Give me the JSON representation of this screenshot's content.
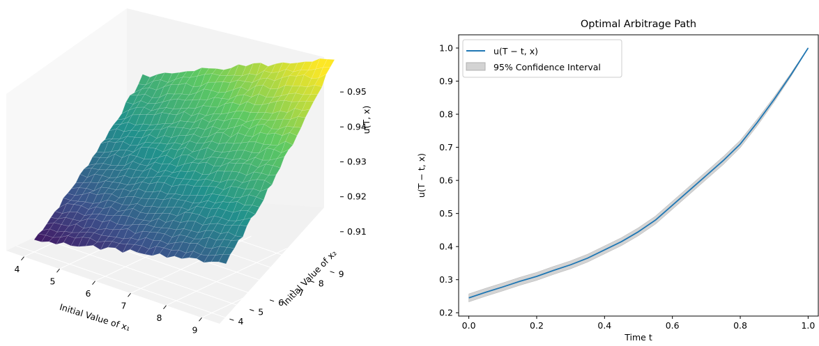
{
  "chart_data": [
    {
      "type": "surface3d",
      "title": "",
      "xlabel": "Initial Value of x₁",
      "ylabel": "Initial Value of x₂",
      "zlabel": "u(T, x)",
      "xticks": [
        "4",
        "5",
        "6",
        "7",
        "8",
        "9"
      ],
      "yticks": [
        "4",
        "5",
        "6",
        "7",
        "8",
        "9"
      ],
      "zticks": [
        "0.91",
        "0.92",
        "0.93",
        "0.94",
        "0.95"
      ],
      "xlim": [
        3.5,
        9.5
      ],
      "ylim": [
        3.5,
        9.5
      ],
      "zlim": [
        0.9,
        0.957
      ],
      "colormap": "viridis",
      "grid": true,
      "surface_corners": {
        "x_low_y_low": 0.9,
        "x_high_y_low": 0.915,
        "x_low_y_high": 0.933,
        "x_high_y_high": 0.957
      }
    },
    {
      "type": "line",
      "title": "Optimal Arbitrage Path",
      "xlabel": "Time t",
      "ylabel": "u(T − t, x)",
      "xlim": [
        -0.03,
        1.03
      ],
      "ylim": [
        0.19,
        1.04
      ],
      "xticks": [
        "0.0",
        "0.2",
        "0.4",
        "0.6",
        "0.8",
        "1.0"
      ],
      "yticks": [
        "0.2",
        "0.3",
        "0.4",
        "0.5",
        "0.6",
        "0.7",
        "0.8",
        "0.9",
        "1.0"
      ],
      "grid": false,
      "legend_position": "top-left",
      "series": [
        {
          "name": "u(T − t, x)",
          "color": "#1f77b4",
          "x": [
            0.0,
            0.05,
            0.1,
            0.15,
            0.2,
            0.25,
            0.3,
            0.35,
            0.4,
            0.45,
            0.5,
            0.55,
            0.6,
            0.65,
            0.7,
            0.75,
            0.8,
            0.85,
            0.9,
            0.95,
            1.0
          ],
          "y": [
            0.245,
            0.262,
            0.278,
            0.295,
            0.31,
            0.328,
            0.345,
            0.365,
            0.39,
            0.415,
            0.445,
            0.48,
            0.525,
            0.57,
            0.615,
            0.66,
            0.71,
            0.775,
            0.845,
            0.92,
            1.0
          ],
          "ci_halfwidth": [
            0.012,
            0.012,
            0.012,
            0.012,
            0.012,
            0.012,
            0.012,
            0.012,
            0.012,
            0.012,
            0.012,
            0.012,
            0.012,
            0.012,
            0.012,
            0.012,
            0.011,
            0.01,
            0.008,
            0.005,
            0.001
          ]
        }
      ],
      "band": {
        "name": "95% Confidence Interval",
        "color": "#d3d3d3"
      }
    }
  ]
}
